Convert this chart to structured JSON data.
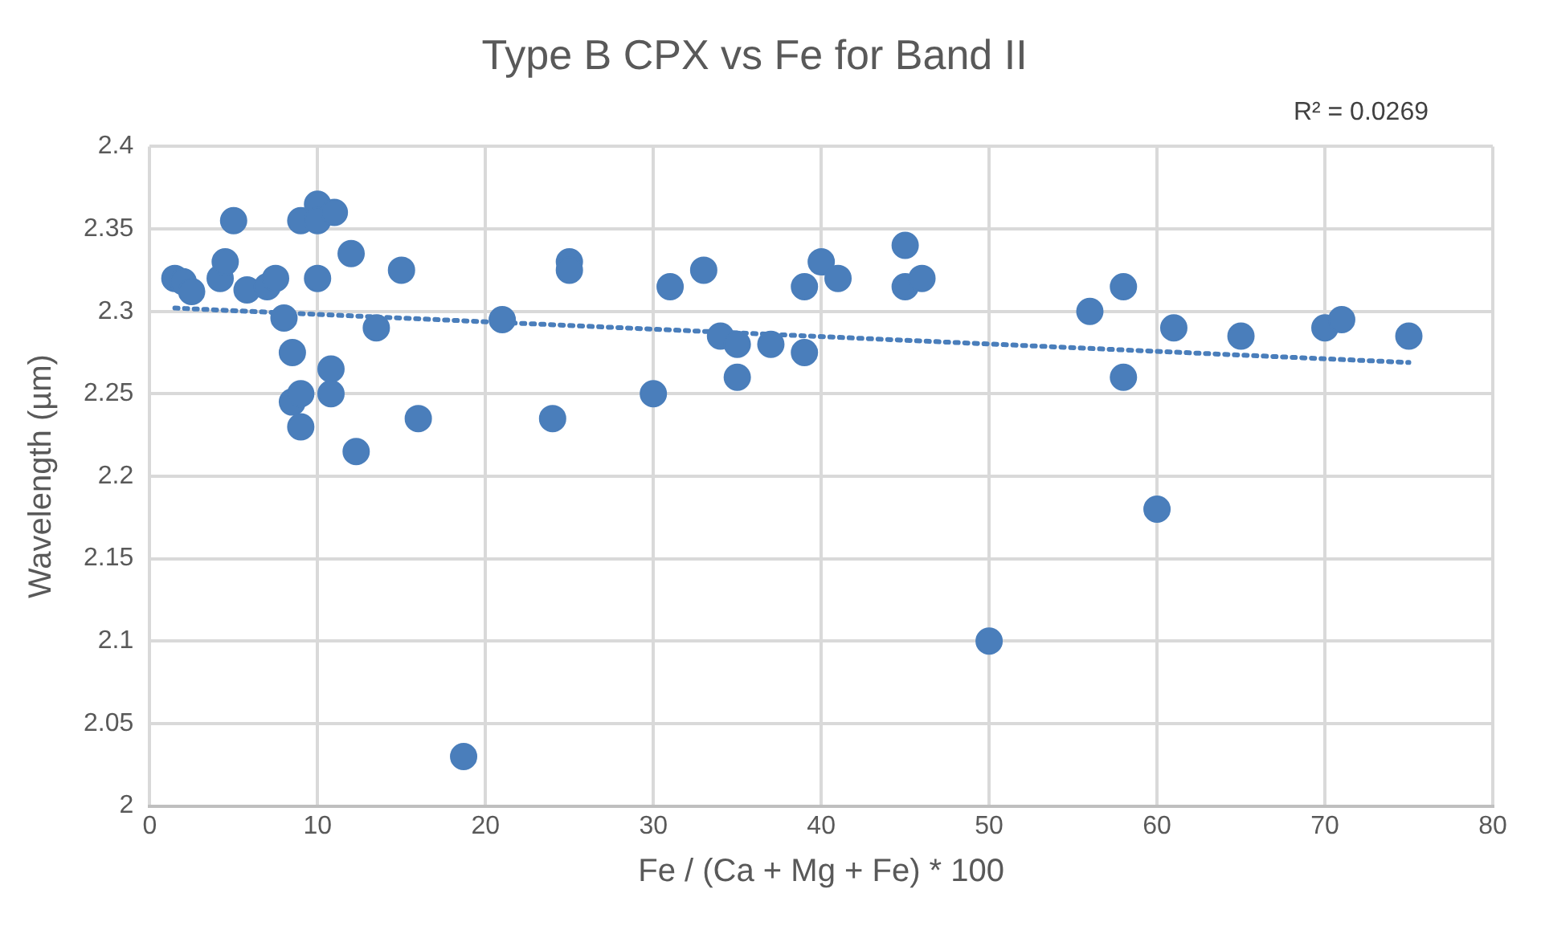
{
  "chart_data": {
    "type": "scatter",
    "title": "Type B CPX vs Fe for Band II",
    "xlabel": "Fe / (Ca + Mg + Fe) * 100",
    "ylabel": "Wavelength (µm)",
    "annotations": [
      "R² = 0.0269"
    ],
    "xlim": [
      0,
      80
    ],
    "xticks": [
      0,
      10,
      20,
      30,
      40,
      50,
      60,
      70,
      80
    ],
    "ylim": [
      2,
      2.4
    ],
    "yticks": [
      {
        "value": 2,
        "label": "2"
      },
      {
        "value": 2.05,
        "label": "2.05"
      },
      {
        "value": 2.1,
        "label": "2.1"
      },
      {
        "value": 2.15,
        "label": "2.15"
      },
      {
        "value": 2.2,
        "label": "2.2"
      },
      {
        "value": 2.25,
        "label": "2.25"
      },
      {
        "value": 2.3,
        "label": "2.3"
      },
      {
        "value": 2.35,
        "label": "2.35"
      },
      {
        "value": 2.4,
        "label": "2.4"
      }
    ],
    "grid": true,
    "legend": false,
    "marker": "circle",
    "series": [
      {
        "type": "scatter",
        "color": "#4a7ebb",
        "x": [
          1.5,
          2,
          2.5,
          4.2,
          4.5,
          5,
          5.8,
          7,
          7.5,
          8,
          8.5,
          8.5,
          9,
          9,
          9,
          10,
          10,
          10,
          11,
          10.8,
          10.8,
          12,
          12.3,
          13.5,
          15,
          16,
          18.7,
          21,
          24,
          25,
          25,
          30,
          31,
          33,
          34,
          35,
          35,
          37,
          39,
          39,
          40,
          41,
          45,
          45,
          46,
          50,
          56,
          58,
          58,
          60,
          61,
          65,
          70,
          71,
          75
        ],
        "values": [
          2.32,
          2.318,
          2.312,
          2.32,
          2.33,
          2.355,
          2.313,
          2.315,
          2.32,
          2.296,
          2.275,
          2.245,
          2.25,
          2.23,
          2.355,
          2.365,
          2.355,
          2.32,
          2.36,
          2.265,
          2.25,
          2.335,
          2.215,
          2.29,
          2.325,
          2.235,
          2.03,
          2.295,
          2.235,
          2.33,
          2.325,
          2.25,
          2.315,
          2.325,
          2.285,
          2.28,
          2.26,
          2.28,
          2.315,
          2.275,
          2.33,
          2.32,
          2.34,
          2.315,
          2.32,
          2.1,
          2.3,
          2.315,
          2.26,
          2.18,
          2.29,
          2.285,
          2.29,
          2.295,
          2.285
        ]
      },
      {
        "type": "line",
        "color": "#4a7ebb",
        "line_style": "dotted",
        "marker": "none",
        "x": [
          1.5,
          75
        ],
        "values": [
          2.302,
          2.269
        ]
      }
    ]
  }
}
